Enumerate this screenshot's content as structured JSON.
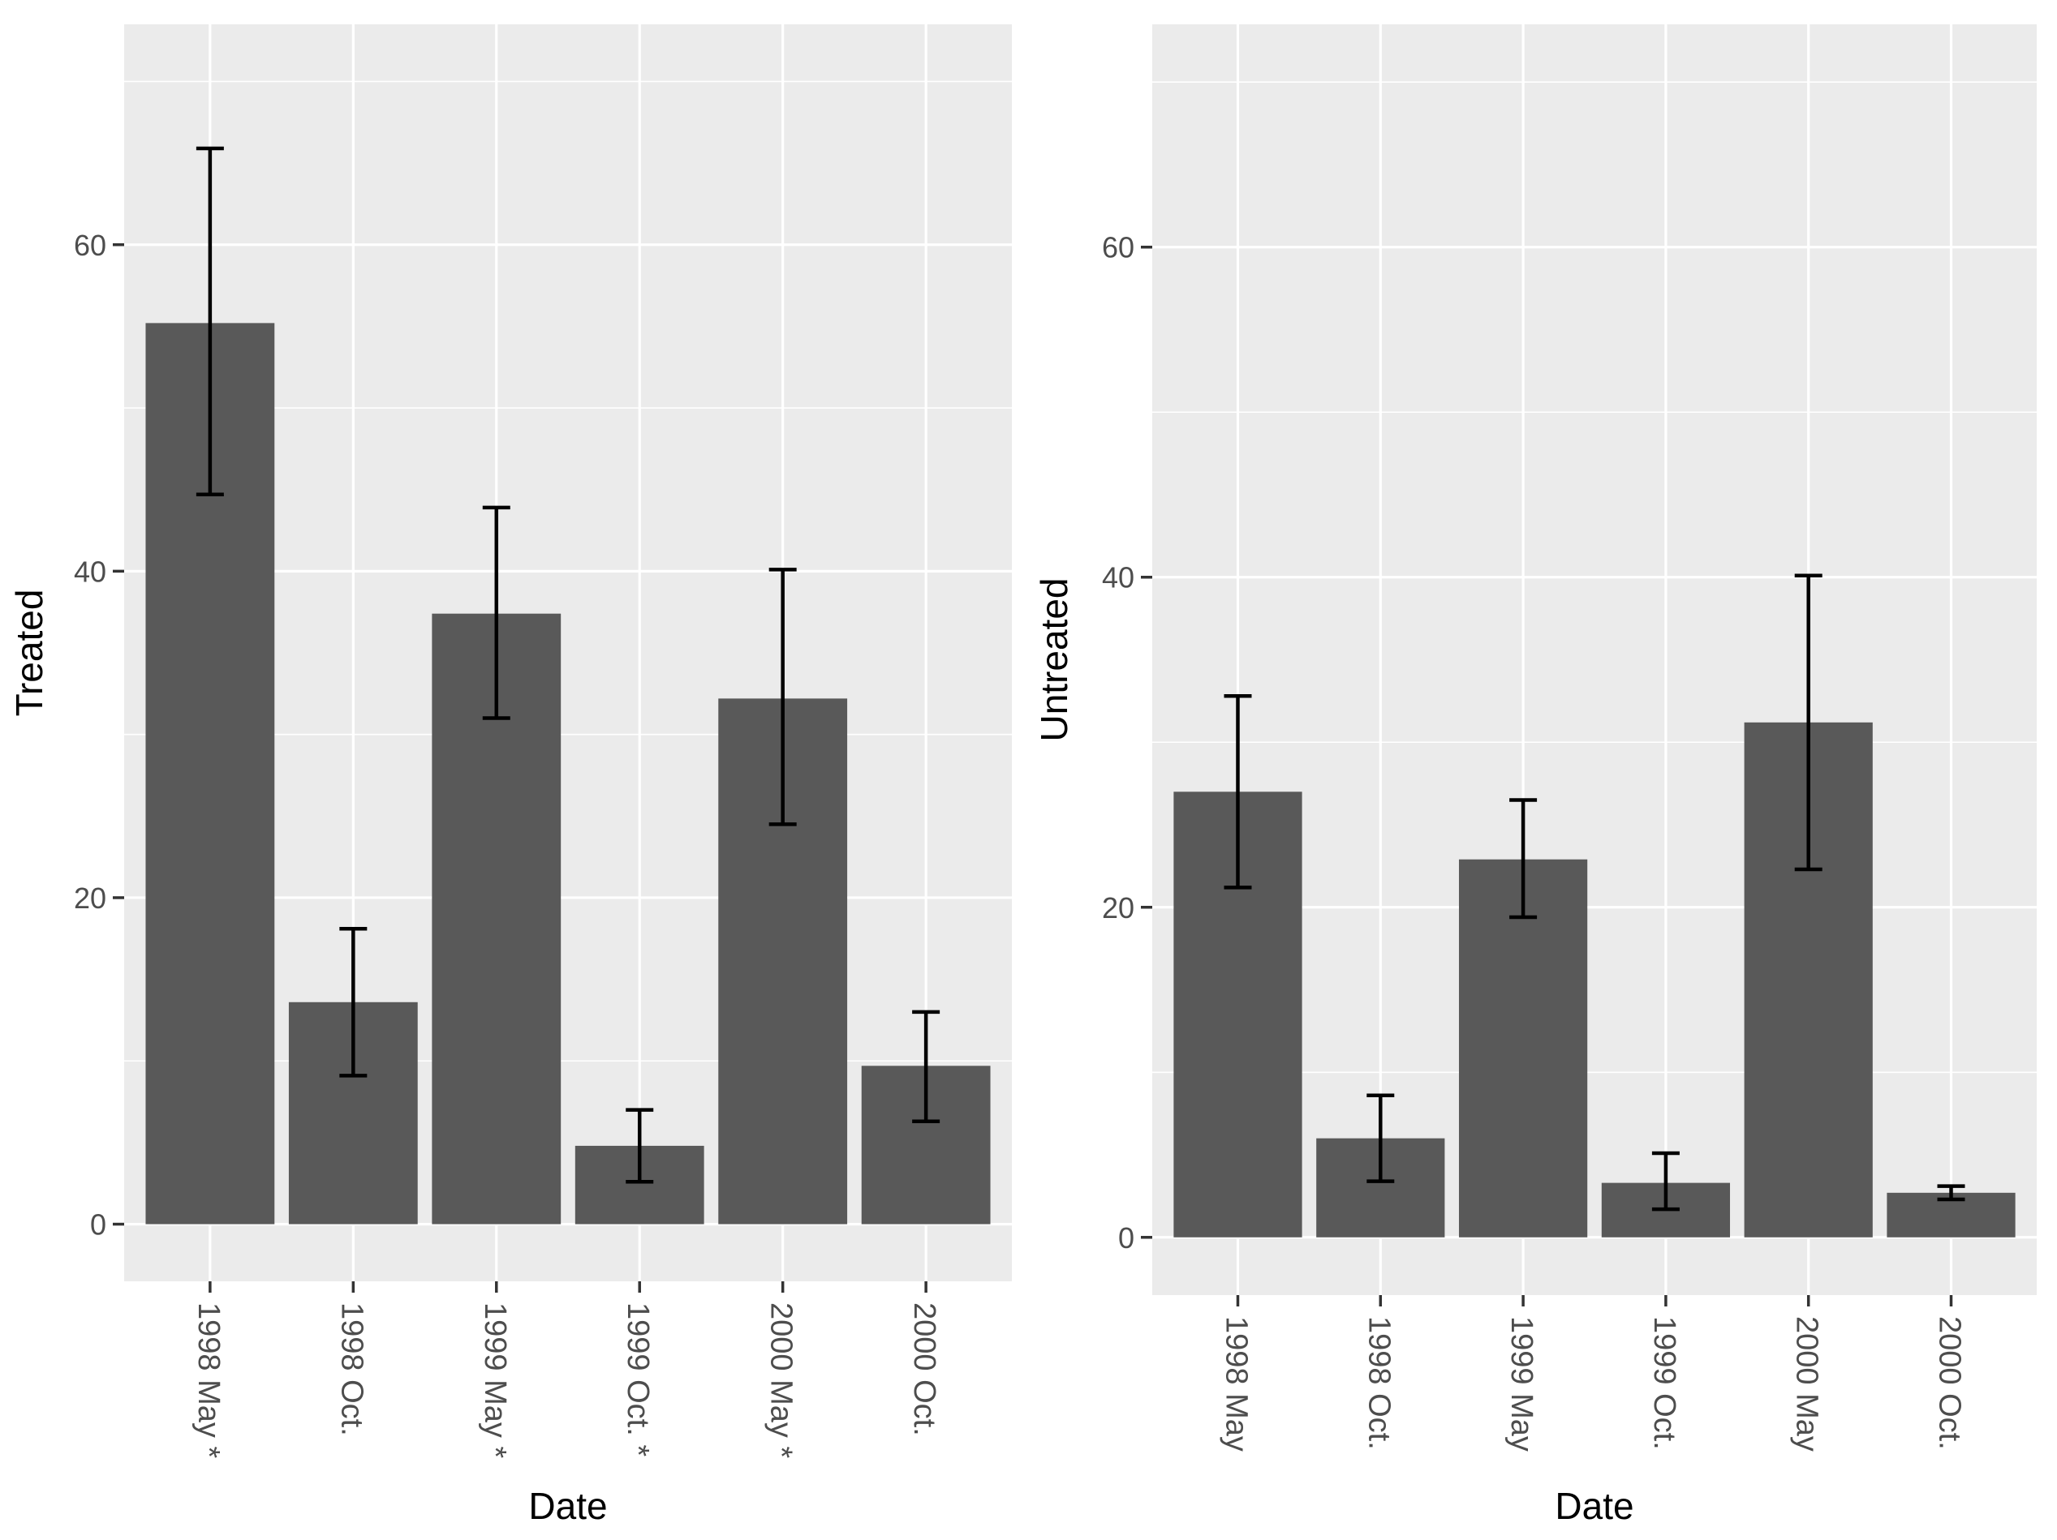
{
  "chart_data": [
    {
      "type": "bar",
      "title": "",
      "xlabel": "Date",
      "ylabel": "Treated",
      "categories": [
        "1998 May *",
        "1998 Oct.",
        "1999 May *",
        "1999 Oct. *",
        "2000 May *",
        "2000 Oct."
      ],
      "values": [
        55.2,
        13.6,
        37.4,
        4.8,
        32.2,
        9.7
      ],
      "error_low": [
        44.7,
        9.1,
        31.0,
        2.6,
        24.5,
        6.3
      ],
      "error_high": [
        65.9,
        18.1,
        43.9,
        7.0,
        40.1,
        13.0
      ],
      "ylim": [
        -3.5,
        73.5
      ],
      "yticks": [
        0,
        20,
        40,
        60
      ],
      "grid": true
    },
    {
      "type": "bar",
      "title": "",
      "xlabel": "Date",
      "ylabel": "Untreated",
      "categories": [
        "1998 May",
        "1998 Oct.",
        "1999 May",
        "1999 Oct.",
        "2000 May",
        "2000 Oct."
      ],
      "values": [
        27.0,
        6.0,
        22.9,
        3.3,
        31.2,
        2.7
      ],
      "error_low": [
        21.2,
        3.4,
        19.4,
        1.7,
        22.3,
        2.3
      ],
      "error_high": [
        32.8,
        8.6,
        26.5,
        5.1,
        40.1,
        3.1
      ],
      "ylim": [
        -3.5,
        73.5
      ],
      "yticks": [
        0,
        20,
        40,
        60
      ],
      "grid": true
    }
  ]
}
